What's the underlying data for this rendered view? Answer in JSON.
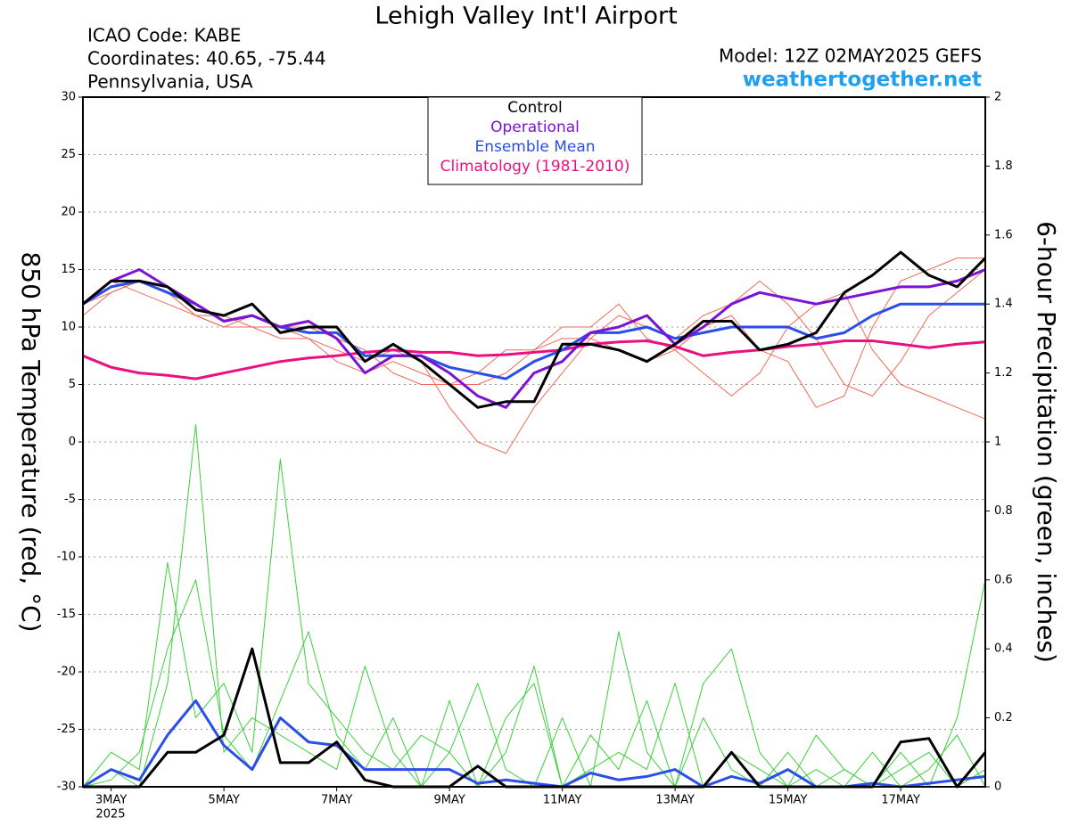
{
  "chart_data": {
    "type": "line",
    "title": "Lehigh Valley Int'l Airport",
    "icao": "ICAO Code: KABE",
    "coordinates": "Coordinates: 40.65, -75.44",
    "location": "Pennsylvania, USA",
    "model": "Model: 12Z 02MAY2025 GEFS",
    "site": "weathertogether.net",
    "ylabel": "850 hPa Temperature (red, °C)",
    "y2label": "6-hour Precipitation (green, inches)",
    "year_label": "2025",
    "x": [
      2.5,
      3,
      3.5,
      4,
      4.5,
      5,
      5.5,
      6,
      6.5,
      7,
      7.5,
      8,
      8.5,
      9,
      9.5,
      10,
      10.5,
      11,
      11.5,
      12,
      12.5,
      13,
      13.5,
      14,
      14.5,
      15,
      15.5,
      16,
      16.5,
      17,
      17.5,
      18,
      18.5
    ],
    "xlim": [
      2.5,
      18.5
    ],
    "xticks": [
      {
        "value": 3,
        "label": "3MAY"
      },
      {
        "value": 5,
        "label": "5MAY"
      },
      {
        "value": 7,
        "label": "7MAY"
      },
      {
        "value": 9,
        "label": "9MAY"
      },
      {
        "value": 11,
        "label": "11MAY"
      },
      {
        "value": 13,
        "label": "13MAY"
      },
      {
        "value": 15,
        "label": "15MAY"
      },
      {
        "value": 17,
        "label": "17MAY"
      }
    ],
    "ylim": [
      -30,
      30
    ],
    "yticks": [
      -30,
      -25,
      -20,
      -15,
      -10,
      -5,
      0,
      5,
      10,
      15,
      20,
      25,
      30
    ],
    "y2lim": [
      0,
      2
    ],
    "y2ticks": [
      0,
      0.2,
      0.4,
      0.6,
      0.8,
      1,
      1.2,
      1.4,
      1.6,
      1.8,
      2
    ],
    "grid": true,
    "series": [
      {
        "color": "#f06a5a",
        "values": [
          12,
          13,
          14,
          13,
          11,
          11,
          10,
          10,
          9,
          8,
          7,
          8,
          7,
          3,
          0,
          -1,
          3,
          6,
          9,
          11,
          10,
          9,
          11,
          12,
          14,
          12,
          9,
          5,
          4,
          7,
          11,
          13,
          15
        ]
      },
      {
        "color": "#f06a5a",
        "values": [
          12,
          14,
          13,
          12,
          11,
          10,
          10,
          9,
          9,
          7,
          6,
          7,
          6,
          5,
          5,
          6,
          8,
          10,
          10,
          12,
          9,
          8,
          10,
          11,
          8,
          7,
          3,
          4,
          10,
          14,
          15,
          16,
          16
        ]
      },
      {
        "color": "#f06a5a",
        "values": [
          11,
          13,
          14,
          13,
          11,
          10,
          11,
          10,
          10,
          9,
          8,
          6,
          5,
          5,
          6,
          8,
          8,
          9,
          9,
          8,
          7,
          8,
          6,
          4,
          6,
          10,
          12,
          13,
          8,
          5,
          4,
          3,
          2
        ]
      },
      {
        "color": "#3ccf3c",
        "axis": "y2",
        "values": [
          0,
          0.05,
          0,
          0.3,
          1.05,
          0.1,
          0.2,
          0.15,
          0.1,
          0.05,
          0.35,
          0.1,
          0,
          0.1,
          0.3,
          0.05,
          0,
          0.2,
          0,
          0.45,
          0.1,
          0,
          0.2,
          0.05,
          0,
          0.1,
          0,
          0.05,
          0,
          0.1,
          0,
          0.2,
          0.6
        ]
      },
      {
        "color": "#3ccf3c",
        "axis": "y2",
        "values": [
          0,
          0.1,
          0.05,
          0.65,
          0.2,
          0.3,
          0.1,
          0.95,
          0.3,
          0.2,
          0.1,
          0.05,
          0.15,
          0.1,
          0,
          0.2,
          0.3,
          0,
          0.05,
          0.1,
          0.05,
          0.3,
          0,
          0.1,
          0.05,
          0,
          0.15,
          0.05,
          0,
          0.05,
          0.1,
          0,
          0.05
        ]
      },
      {
        "color": "#3ccf3c",
        "axis": "y2",
        "values": [
          0,
          0.02,
          0.1,
          0.4,
          0.6,
          0.15,
          0.05,
          0.25,
          0.45,
          0.15,
          0.05,
          0.2,
          0,
          0.25,
          0,
          0.1,
          0.35,
          0,
          0.15,
          0.05,
          0.25,
          0,
          0.3,
          0.4,
          0.1,
          0,
          0.05,
          0,
          0.1,
          0,
          0.05,
          0.15,
          0
        ]
      },
      {
        "name": "Climatology (1981-2010)",
        "color": "#e8117f",
        "values": [
          7.5,
          6.5,
          6,
          5.8,
          5.5,
          6,
          6.5,
          7,
          7.3,
          7.5,
          7.8,
          8,
          7.8,
          7.8,
          7.5,
          7.6,
          7.8,
          8,
          8.5,
          8.7,
          8.8,
          8.3,
          7.5,
          7.8,
          8,
          8.3,
          8.5,
          8.8,
          8.8,
          8.5,
          8.2,
          8.5,
          8.7
        ]
      },
      {
        "name": "Ensemble Mean",
        "color": "#2a4fe8",
        "values": [
          12,
          13.5,
          14,
          13,
          12,
          10.5,
          11,
          10,
          9.5,
          9.5,
          7.5,
          7.5,
          7.5,
          6.5,
          6,
          5.5,
          7,
          8,
          9.5,
          9.5,
          10,
          9,
          9.5,
          10,
          10,
          10,
          9,
          9.5,
          11,
          12,
          12,
          12,
          12
        ]
      },
      {
        "name": "Operational",
        "color": "#7b12d4",
        "values": [
          12,
          14,
          15,
          13.5,
          12,
          10.5,
          11,
          10,
          10.5,
          9,
          6,
          7.5,
          7.5,
          6,
          4,
          3,
          6,
          7,
          9.5,
          10,
          11,
          8.5,
          10,
          12,
          13,
          12.5,
          12,
          12.5,
          13,
          13.5,
          13.5,
          14,
          15
        ]
      },
      {
        "name": "Control",
        "color": "#000000",
        "values": [
          12,
          14,
          14,
          13.5,
          11.5,
          11,
          12,
          9.5,
          10,
          10,
          7,
          8.5,
          7,
          5,
          3,
          3.5,
          3.5,
          8.5,
          8.5,
          8,
          7,
          8.5,
          10.5,
          10.5,
          8,
          8.5,
          9.5,
          13,
          14.5,
          16.5,
          14.5,
          13.5,
          16
        ]
      },
      {
        "color": "#2a4fe8",
        "axis": "y2",
        "values": [
          0,
          0.05,
          0.02,
          0.15,
          0.25,
          0.12,
          0.05,
          0.2,
          0.13,
          0.12,
          0.05,
          0.05,
          0.05,
          0.05,
          0.01,
          0.02,
          0.01,
          0,
          0.04,
          0.02,
          0.03,
          0.05,
          0,
          0.03,
          0.01,
          0.05,
          0,
          0,
          0.01,
          0,
          0.01,
          0.02,
          0.03
        ]
      },
      {
        "color": "#000000",
        "axis": "y2",
        "values": [
          0,
          0,
          0,
          0.1,
          0.1,
          0.15,
          0.4,
          0.07,
          0.07,
          0.13,
          0.02,
          0,
          0,
          0,
          0.06,
          0,
          0,
          0,
          0,
          0,
          0,
          0,
          0,
          0.1,
          0,
          0,
          0,
          0,
          0,
          0.13,
          0.14,
          0,
          0.1
        ]
      }
    ]
  }
}
